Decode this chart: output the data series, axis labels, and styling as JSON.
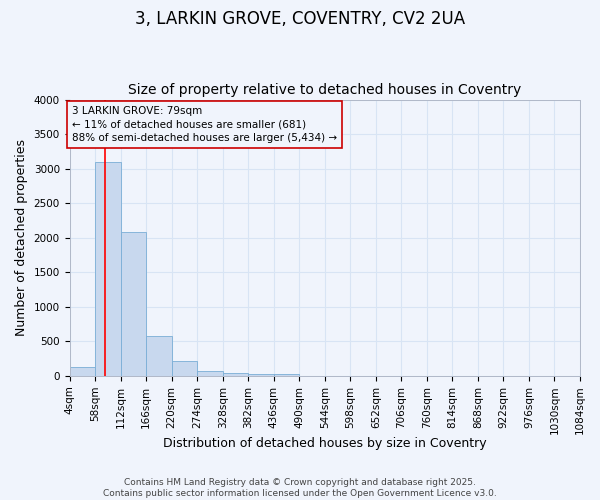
{
  "title": "3, LARKIN GROVE, COVENTRY, CV2 2UA",
  "subtitle": "Size of property relative to detached houses in Coventry",
  "xlabel": "Distribution of detached houses by size in Coventry",
  "ylabel": "Number of detached properties",
  "bin_edges": [
    4,
    58,
    112,
    166,
    220,
    274,
    328,
    382,
    436,
    490,
    544,
    598,
    652,
    706,
    760,
    814,
    868,
    922,
    976,
    1030,
    1084
  ],
  "bar_heights": [
    130,
    3100,
    2080,
    570,
    210,
    65,
    45,
    30,
    30,
    5,
    3,
    2,
    1,
    1,
    0,
    0,
    0,
    0,
    0,
    0
  ],
  "bar_color": "#c8d8ee",
  "bar_edge_color": "#7aaed6",
  "bg_color": "#f0f4fc",
  "plot_bg_color": "#f0f4fc",
  "grid_color": "#d8e4f4",
  "red_line_x": 79,
  "annotation_text": "3 LARKIN GROVE: 79sqm\n← 11% of detached houses are smaller (681)\n88% of semi-detached houses are larger (5,434) →",
  "annotation_box_color": "#cc0000",
  "ylim": [
    0,
    4000
  ],
  "yticks": [
    0,
    500,
    1000,
    1500,
    2000,
    2500,
    3000,
    3500,
    4000
  ],
  "footer_line1": "Contains HM Land Registry data © Crown copyright and database right 2025.",
  "footer_line2": "Contains public sector information licensed under the Open Government Licence v3.0.",
  "title_fontsize": 12,
  "subtitle_fontsize": 10,
  "axis_label_fontsize": 9,
  "tick_fontsize": 7.5,
  "annotation_fontsize": 7.5,
  "footer_fontsize": 6.5
}
